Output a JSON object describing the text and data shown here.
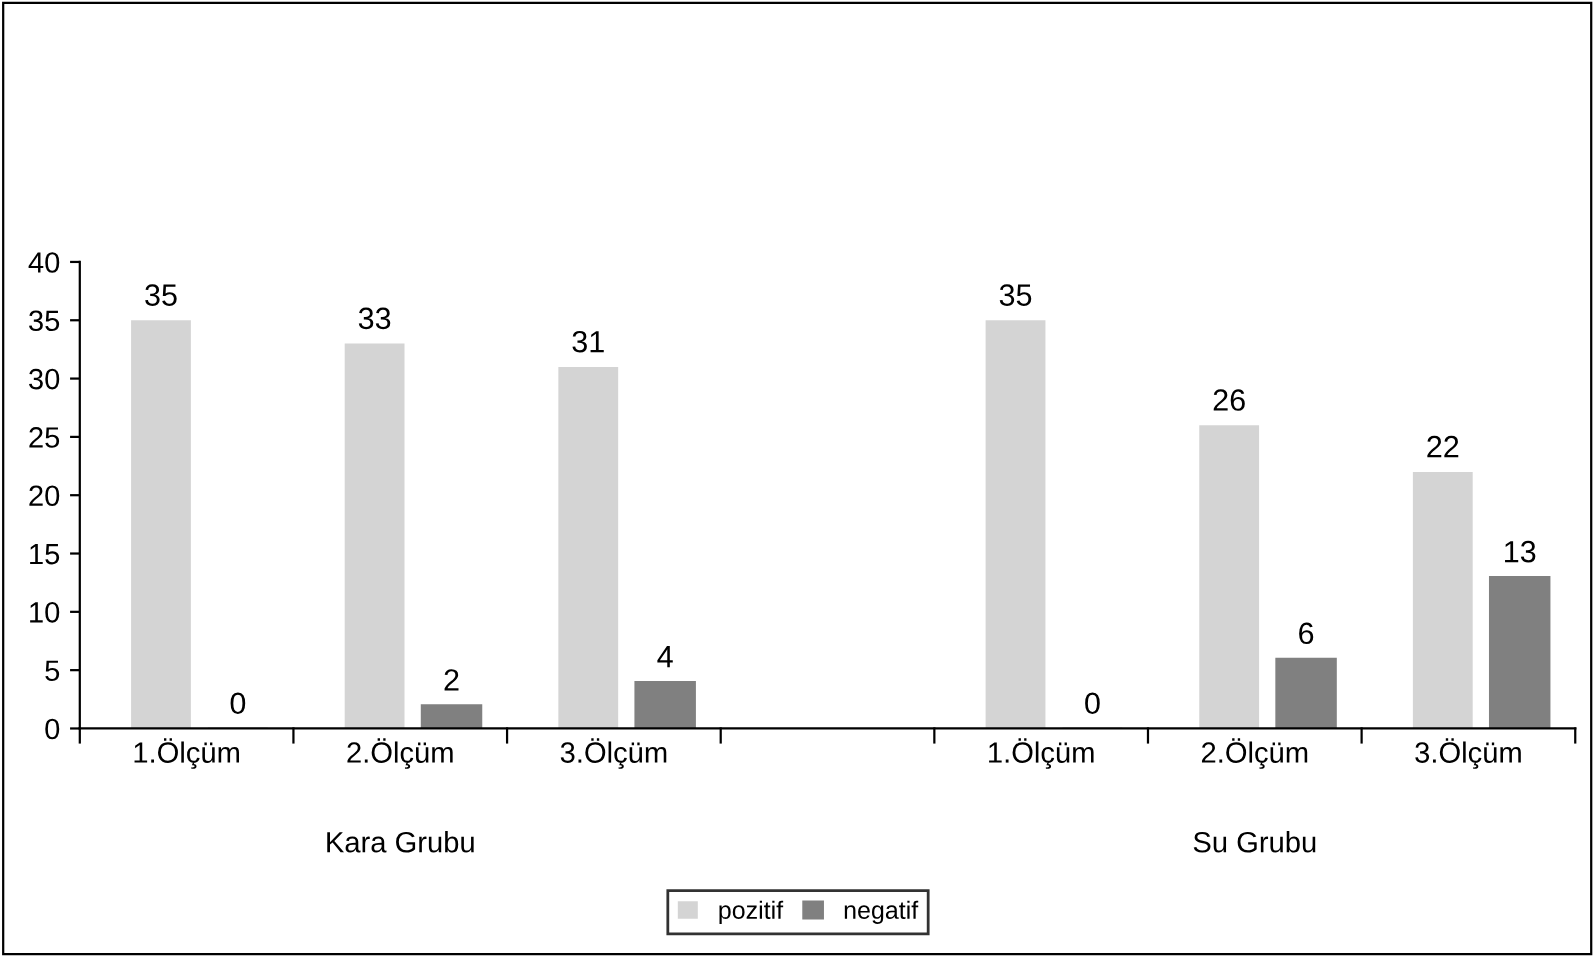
{
  "chart_data": {
    "type": "bar",
    "categories": [
      "1.Ölçüm",
      "2.Ölçüm",
      "3.Ölçüm",
      null,
      "1.Ölçüm",
      "2.Ölçüm",
      "3.Ölçüm"
    ],
    "series": [
      {
        "name": "pozitif",
        "color": "#d4d4d4",
        "values": [
          35,
          33,
          31,
          null,
          35,
          26,
          22
        ]
      },
      {
        "name": "negatif",
        "color": "#808080",
        "values": [
          0,
          2,
          4,
          null,
          0,
          6,
          13
        ]
      }
    ],
    "ylim": [
      0,
      40
    ],
    "yticks": [
      0,
      5,
      10,
      15,
      20,
      25,
      30,
      35,
      40
    ],
    "grid": false,
    "legend": "bottom",
    "data_labels": true,
    "annotations": [
      "Kara Grubu",
      "Su Grubu"
    ]
  }
}
